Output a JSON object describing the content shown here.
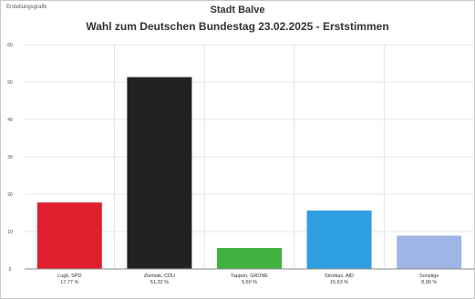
{
  "header": {
    "corner_label": "Erstellungsgrafik",
    "subtitle": "Stadt Balve",
    "title": "Wahl zum Deutschen Bundestag 23.02.2025 - Erststimmen"
  },
  "colors": {
    "grid": "#e4e4e4",
    "axis": "#888888"
  },
  "chart_data": {
    "type": "bar",
    "title": "Wahl zum Deutschen Bundestag 23.02.2025 - Erststimmen",
    "subtitle": "Stadt Balve",
    "categories": [
      "Lugk, SPD",
      "Ziemiak, CDU",
      "Tappen, GRÜNE",
      "Strotkas, AfD",
      "Sonstige"
    ],
    "value_labels": [
      "17,77 %",
      "51,32 %",
      "5,60 %",
      "15,63 %",
      "8,90 %"
    ],
    "values": [
      17.77,
      51.32,
      5.6,
      15.63,
      8.9
    ],
    "bar_colors": [
      "#e0202e",
      "#222222",
      "#3fb23f",
      "#2e9fe0",
      "#9db6e6"
    ],
    "ylim": [
      0,
      60
    ],
    "yticks": [
      0,
      10,
      20,
      30,
      40,
      50,
      60
    ],
    "grid": true,
    "xlabel": "",
    "ylabel": ""
  }
}
